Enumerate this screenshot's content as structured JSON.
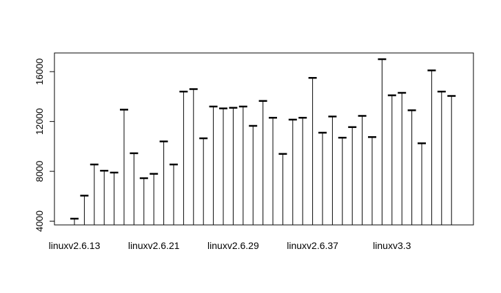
{
  "chart_data": {
    "type": "bar",
    "style": "histogram-spikes",
    "title": "",
    "xlabel": "",
    "ylabel": "",
    "x_tick_labels": [
      "linuxv2.6.13",
      "linuxv2.6.21",
      "linuxv2.6.29",
      "linuxv2.6.37",
      "linuxv3.3"
    ],
    "x_tick_label_at_index": [
      0,
      8,
      16,
      24,
      32
    ],
    "y_ticks": [
      4000,
      8000,
      12000,
      16000
    ],
    "ylim": [
      3700,
      17500
    ],
    "grid": false,
    "legend": "none",
    "values": [
      4200,
      6050,
      8550,
      8050,
      7900,
      12950,
      9450,
      7450,
      7800,
      10400,
      8550,
      14400,
      14600,
      10650,
      13200,
      13050,
      13100,
      13200,
      11650,
      13650,
      12300,
      9400,
      12150,
      12300,
      15500,
      11100,
      12400,
      10700,
      11550,
      12450,
      10750,
      17000,
      14100,
      14300,
      12900,
      10250,
      16100,
      14400,
      14050
    ],
    "colors": {
      "line": "#000000",
      "frame": "#000000"
    }
  }
}
